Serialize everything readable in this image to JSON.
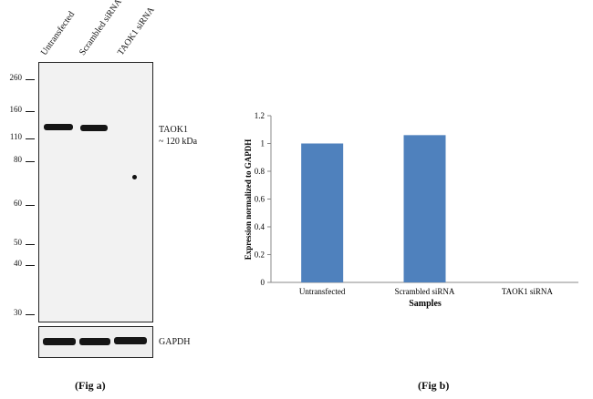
{
  "blot": {
    "lanes": [
      "Untransfected",
      "Scrambled siRNA",
      "TAOK1 siRNA"
    ],
    "markers": [
      "260",
      "160",
      "110",
      "80",
      "60",
      "50",
      "40",
      "30"
    ],
    "target_label": "TAOK1",
    "target_size": "~ 120 kDa",
    "loading_label": "GAPDH",
    "caption": "(Fig a)"
  },
  "chart_data": {
    "type": "bar",
    "categories": [
      "Untransfected",
      "Scrambled siRNA",
      "TAOK1 siRNA"
    ],
    "values": [
      1.0,
      1.06,
      0.0
    ],
    "ylim": [
      0,
      1.2
    ],
    "yticks": [
      "0",
      "0.2",
      "0.4",
      "0.6",
      "0.8",
      "1",
      "1.2"
    ],
    "xlabel": "Samples",
    "ylabel": "Expression  normalized to GAPDH",
    "bar_color": "#4f81bd",
    "caption": "(Fig b)"
  }
}
